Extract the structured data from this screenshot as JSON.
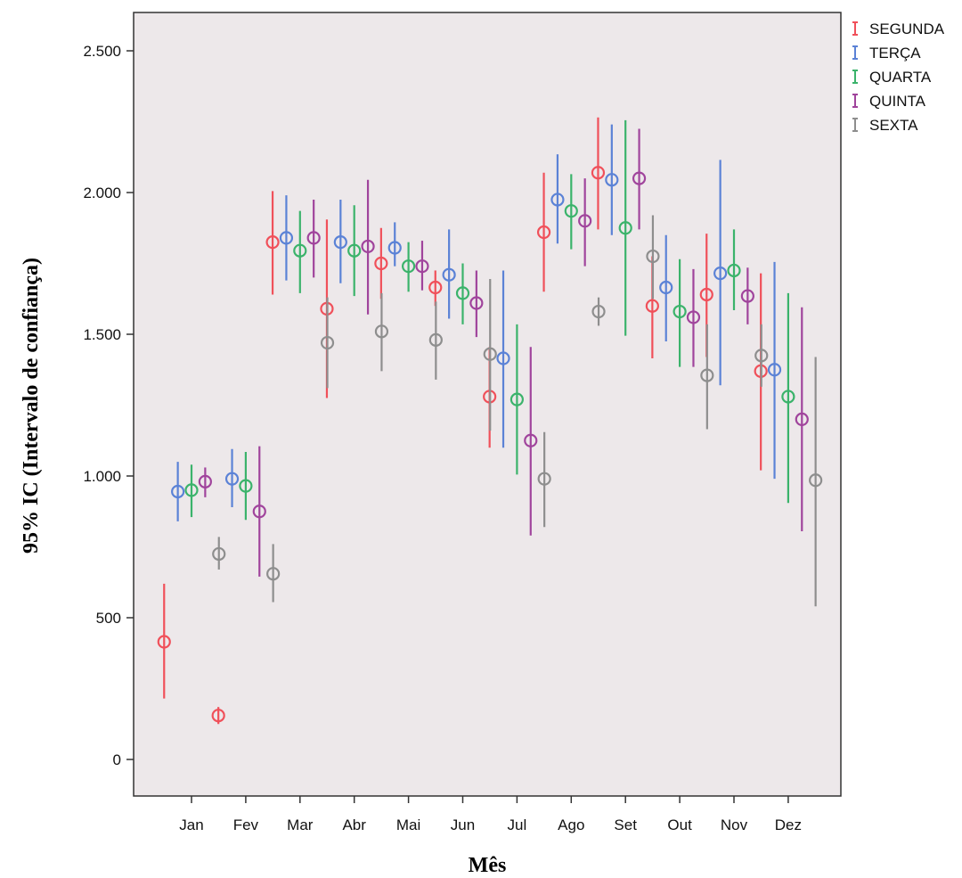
{
  "chart_data": {
    "type": "errorbar",
    "title": "",
    "xlabel": "Mês",
    "ylabel": "95% IC (Intervalo de confiança)",
    "categories": [
      "Jan",
      "Fev",
      "Mar",
      "Abr",
      "Mai",
      "Jun",
      "Jul",
      "Ago",
      "Set",
      "Out",
      "Nov",
      "Dez"
    ],
    "ylim": [
      -100,
      2650
    ],
    "yticks": [
      0,
      500,
      1000,
      1500,
      2000,
      2500
    ],
    "ytick_labels": [
      "0",
      "500",
      "1.000",
      "1.500",
      "2.000",
      "2.500"
    ],
    "grid": false,
    "legend_position": "top-right",
    "plot_background": "#ede8ea",
    "series": [
      {
        "name": "SEGUNDA",
        "color": "#f0505a",
        "mean": [
          415,
          155,
          1825,
          1590,
          1750,
          1665,
          1280,
          1860,
          2070,
          1600,
          1640,
          1370
        ],
        "lower": [
          215,
          125,
          1640,
          1275,
          1625,
          1600,
          1100,
          1650,
          1870,
          1415,
          1420,
          1020
        ],
        "upper": [
          620,
          185,
          2005,
          1905,
          1875,
          1725,
          1455,
          2070,
          2265,
          1775,
          1855,
          1715
        ]
      },
      {
        "name": "TERÇA",
        "color": "#5b82d6",
        "mean": [
          945,
          990,
          1840,
          1825,
          1805,
          1710,
          1415,
          1975,
          2045,
          1665,
          1715,
          1375
        ],
        "lower": [
          840,
          890,
          1690,
          1680,
          1740,
          1555,
          1100,
          1820,
          1850,
          1475,
          1320,
          990
        ],
        "upper": [
          1050,
          1095,
          1990,
          1975,
          1895,
          1870,
          1725,
          2135,
          2240,
          1850,
          2115,
          1755
        ]
      },
      {
        "name": "QUARTA",
        "color": "#3bb36b",
        "mean": [
          950,
          965,
          1795,
          1795,
          1740,
          1645,
          1270,
          1935,
          1875,
          1580,
          1725,
          1280
        ],
        "lower": [
          855,
          845,
          1645,
          1635,
          1650,
          1535,
          1005,
          1800,
          1495,
          1385,
          1585,
          905
        ],
        "upper": [
          1040,
          1085,
          1935,
          1955,
          1825,
          1750,
          1535,
          2065,
          2255,
          1765,
          1870,
          1645
        ]
      },
      {
        "name": "QUINTA",
        "color": "#a0449c",
        "mean": [
          980,
          875,
          1840,
          1810,
          1740,
          1610,
          1125,
          1900,
          2050,
          1560,
          1635,
          1200
        ],
        "lower": [
          925,
          645,
          1700,
          1570,
          1655,
          1490,
          790,
          1740,
          1870,
          1385,
          1535,
          805
        ],
        "upper": [
          1030,
          1105,
          1975,
          2045,
          1830,
          1725,
          1455,
          2050,
          2225,
          1730,
          1735,
          1595
        ]
      },
      {
        "name": "SEXTA",
        "color": "#8e8e8e",
        "mean": [
          725,
          655,
          1470,
          1510,
          1480,
          1430,
          990,
          1580,
          1775,
          1355,
          1425,
          985
        ],
        "lower": [
          670,
          555,
          1310,
          1370,
          1340,
          1160,
          820,
          1530,
          1625,
          1165,
          1315,
          540
        ],
        "upper": [
          785,
          760,
          1630,
          1645,
          1615,
          1695,
          1155,
          1630,
          1920,
          1535,
          1535,
          1420
        ]
      }
    ]
  }
}
